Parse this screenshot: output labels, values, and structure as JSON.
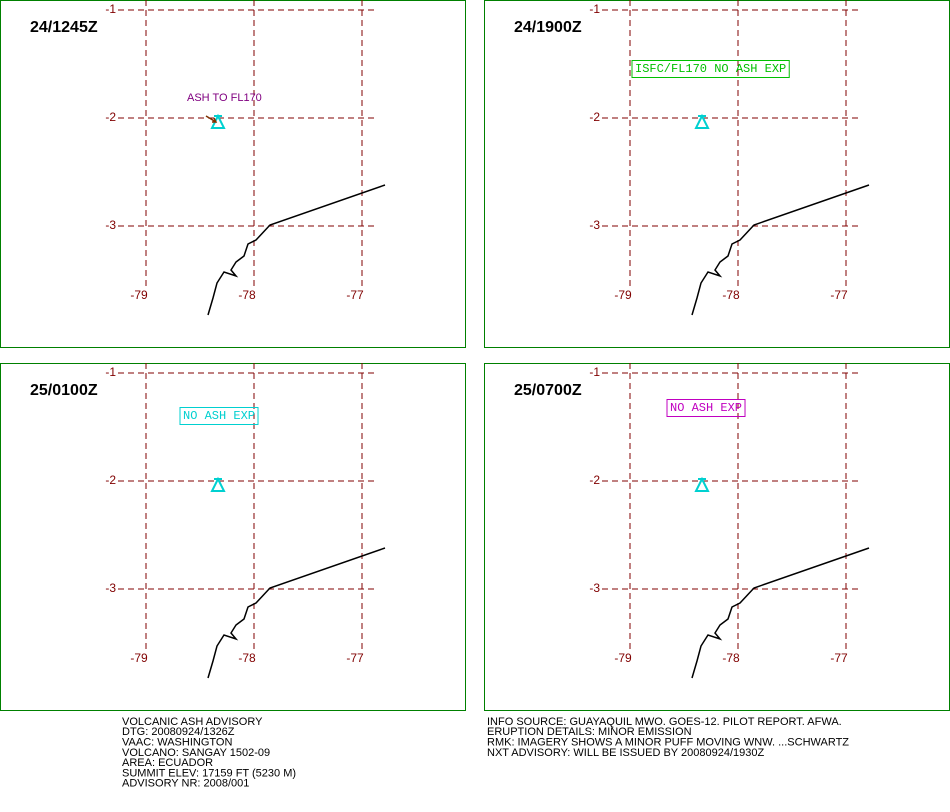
{
  "panels": [
    {
      "time": "24/1245Z",
      "annotation": "ASH TO FL170"
    },
    {
      "time": "24/1900Z",
      "annotation": "ISFC/FL170 NO ASH EXP"
    },
    {
      "time": "25/0100Z",
      "annotation": "NO ASH EXP"
    },
    {
      "time": "25/0700Z",
      "annotation": "NO ASH EXP"
    }
  ],
  "grid": {
    "lat_labels": [
      "-1",
      "-2",
      "-3"
    ],
    "lon_labels": [
      "-79",
      "-78",
      "-77"
    ]
  },
  "footer": {
    "left": [
      "VOLCANIC ASH ADVISORY",
      "DTG: 20080924/1326Z",
      "VAAC: WASHINGTON",
      "VOLCANO: SANGAY 1502-09",
      "AREA: ECUADOR",
      "SUMMIT ELEV: 17159 FT (5230 M)",
      "ADVISORY NR: 2008/001"
    ],
    "right": [
      "INFO SOURCE: GUAYAQUIL MWO. GOES-12. PILOT REPORT. AFWA.",
      "ERUPTION DETAILS: MINOR EMISSION",
      "RMK: IMAGERY SHOWS A MINOR PUFF MOVING WNW. ...SCHWARTZ",
      "NXT ADVISORY: WILL BE ISSUED BY 20080924/1930Z"
    ]
  }
}
